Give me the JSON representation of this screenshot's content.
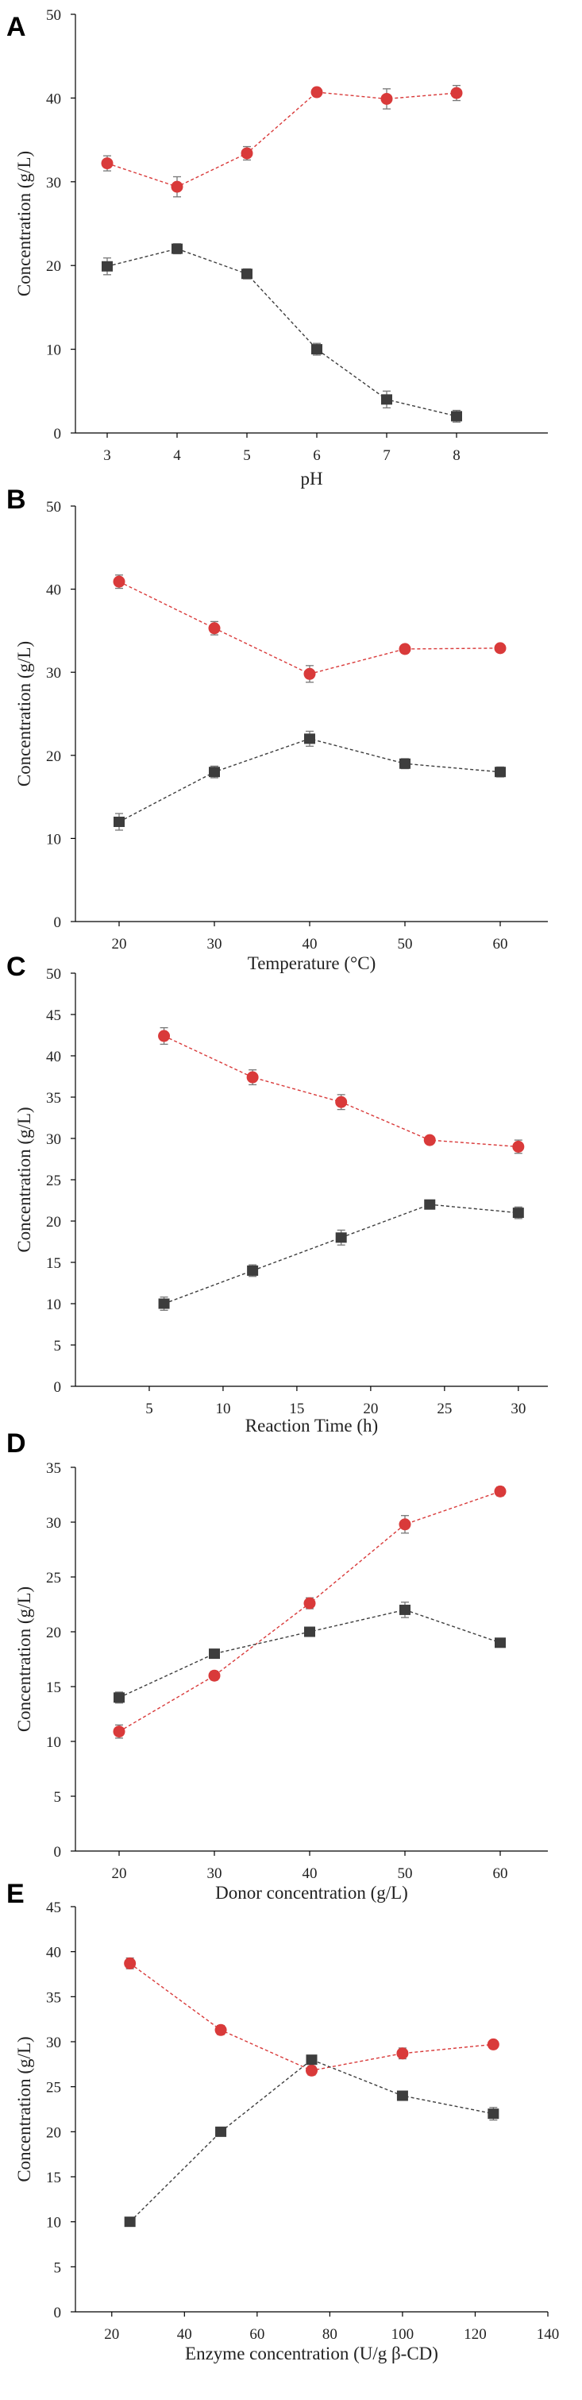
{
  "colors": {
    "red_series": "#d93a3a",
    "gray_series": "#3d3d3d",
    "axis": "#000000"
  },
  "chart_data": [
    {
      "panel": "A",
      "type": "line",
      "xlabel": "pH",
      "ylabel": "Concentration (g/L)",
      "categories": [
        "3",
        "4",
        "5",
        "6",
        "7",
        "8"
      ],
      "xticks": [
        "3",
        "4",
        "5",
        "6",
        "7",
        "8"
      ],
      "ylim": [
        0,
        50
      ],
      "yticks": [
        "0",
        "10",
        "20",
        "30",
        "40",
        "50"
      ],
      "series": [
        {
          "name": "red-circles",
          "marker": "circle",
          "values": [
            32.2,
            29.4,
            33.4,
            40.7,
            39.9,
            40.6
          ],
          "errors": [
            0.9,
            1.2,
            0.8,
            0.5,
            1.2,
            0.9
          ]
        },
        {
          "name": "gray-squares",
          "marker": "square",
          "values": [
            19.9,
            22.0,
            19.0,
            10.0,
            4.0,
            2.0
          ],
          "errors": [
            1.0,
            0.6,
            0.6,
            0.7,
            1.0,
            0.7
          ]
        }
      ]
    },
    {
      "panel": "B",
      "type": "line",
      "xlabel": "Temperature (°C)",
      "ylabel": "Concentration (g/L)",
      "categories": [
        "20",
        "30",
        "40",
        "50",
        "60"
      ],
      "xticks": [
        "20",
        "30",
        "40",
        "50",
        "60"
      ],
      "ylim": [
        0,
        50
      ],
      "yticks": [
        "0",
        "10",
        "20",
        "30",
        "40",
        "50"
      ],
      "series": [
        {
          "name": "red-circles",
          "marker": "circle",
          "values": [
            40.9,
            35.3,
            29.8,
            32.8,
            32.9
          ],
          "errors": [
            0.8,
            0.8,
            1.0,
            0.5,
            0.4
          ]
        },
        {
          "name": "gray-squares",
          "marker": "square",
          "values": [
            12.0,
            18.0,
            22.0,
            19.0,
            18.0
          ],
          "errors": [
            1.0,
            0.7,
            0.9,
            0.6,
            0.6
          ]
        }
      ]
    },
    {
      "panel": "C",
      "type": "line",
      "xlabel": "Reaction Time (h)",
      "ylabel": "Concentration (g/L)",
      "xlim": [
        0,
        32
      ],
      "xticks": [
        "5",
        "10",
        "15",
        "20",
        "25",
        "30"
      ],
      "ylim": [
        0,
        50
      ],
      "yticks": [
        "0",
        "5",
        "10",
        "15",
        "20",
        "25",
        "30",
        "35",
        "40",
        "45",
        "50"
      ],
      "series": [
        {
          "name": "red-circles",
          "marker": "circle",
          "x": [
            6,
            12,
            18,
            24,
            30
          ],
          "values": [
            42.4,
            37.4,
            34.4,
            29.8,
            29.0
          ],
          "errors": [
            1.0,
            0.9,
            0.9,
            0.4,
            0.8
          ]
        },
        {
          "name": "gray-squares",
          "marker": "square",
          "x": [
            6,
            12,
            18,
            24,
            30
          ],
          "values": [
            10.0,
            14.0,
            18.0,
            22.0,
            21.0
          ],
          "errors": [
            0.8,
            0.7,
            0.9,
            0.4,
            0.7
          ]
        }
      ]
    },
    {
      "panel": "D",
      "type": "line",
      "xlabel": "Donor concentration (g/L)",
      "ylabel": "Concentration (g/L)",
      "categories": [
        "20",
        "30",
        "40",
        "50",
        "60"
      ],
      "xticks": [
        "20",
        "30",
        "40",
        "50",
        "60"
      ],
      "ylim": [
        0,
        35
      ],
      "yticks": [
        "0",
        "5",
        "10",
        "15",
        "20",
        "25",
        "30",
        "35"
      ],
      "series": [
        {
          "name": "red-circles",
          "marker": "circle",
          "values": [
            10.9,
            16.0,
            22.6,
            29.8,
            32.8
          ],
          "errors": [
            0.6,
            0.4,
            0.5,
            0.8,
            0.4
          ]
        },
        {
          "name": "gray-squares",
          "marker": "square",
          "values": [
            14.0,
            18.0,
            20.0,
            22.0,
            19.0
          ],
          "errors": [
            0.5,
            0.4,
            0.4,
            0.7,
            0.4
          ]
        }
      ]
    },
    {
      "panel": "E",
      "type": "line",
      "xlabel": "Enzyme concentration (U/g β-CD)",
      "ylabel": "Concentration (g/L)",
      "xlim": [
        10,
        140
      ],
      "xticks": [
        "20",
        "40",
        "60",
        "80",
        "100",
        "120",
        "140"
      ],
      "ylim": [
        0,
        45
      ],
      "yticks": [
        "0",
        "5",
        "10",
        "15",
        "20",
        "25",
        "30",
        "35",
        "40",
        "45"
      ],
      "series": [
        {
          "name": "red-circles",
          "marker": "circle",
          "x": [
            25,
            50,
            75,
            100,
            125
          ],
          "values": [
            38.7,
            31.3,
            26.8,
            28.7,
            29.7
          ],
          "errors": [
            0.6,
            0.5,
            0.5,
            0.6,
            0.4
          ]
        },
        {
          "name": "gray-squares",
          "marker": "square",
          "x": [
            25,
            50,
            75,
            100,
            125
          ],
          "values": [
            10.0,
            20.0,
            28.0,
            24.0,
            22.0
          ],
          "errors": [
            0.3,
            0.3,
            0.4,
            0.4,
            0.7
          ]
        }
      ]
    }
  ]
}
